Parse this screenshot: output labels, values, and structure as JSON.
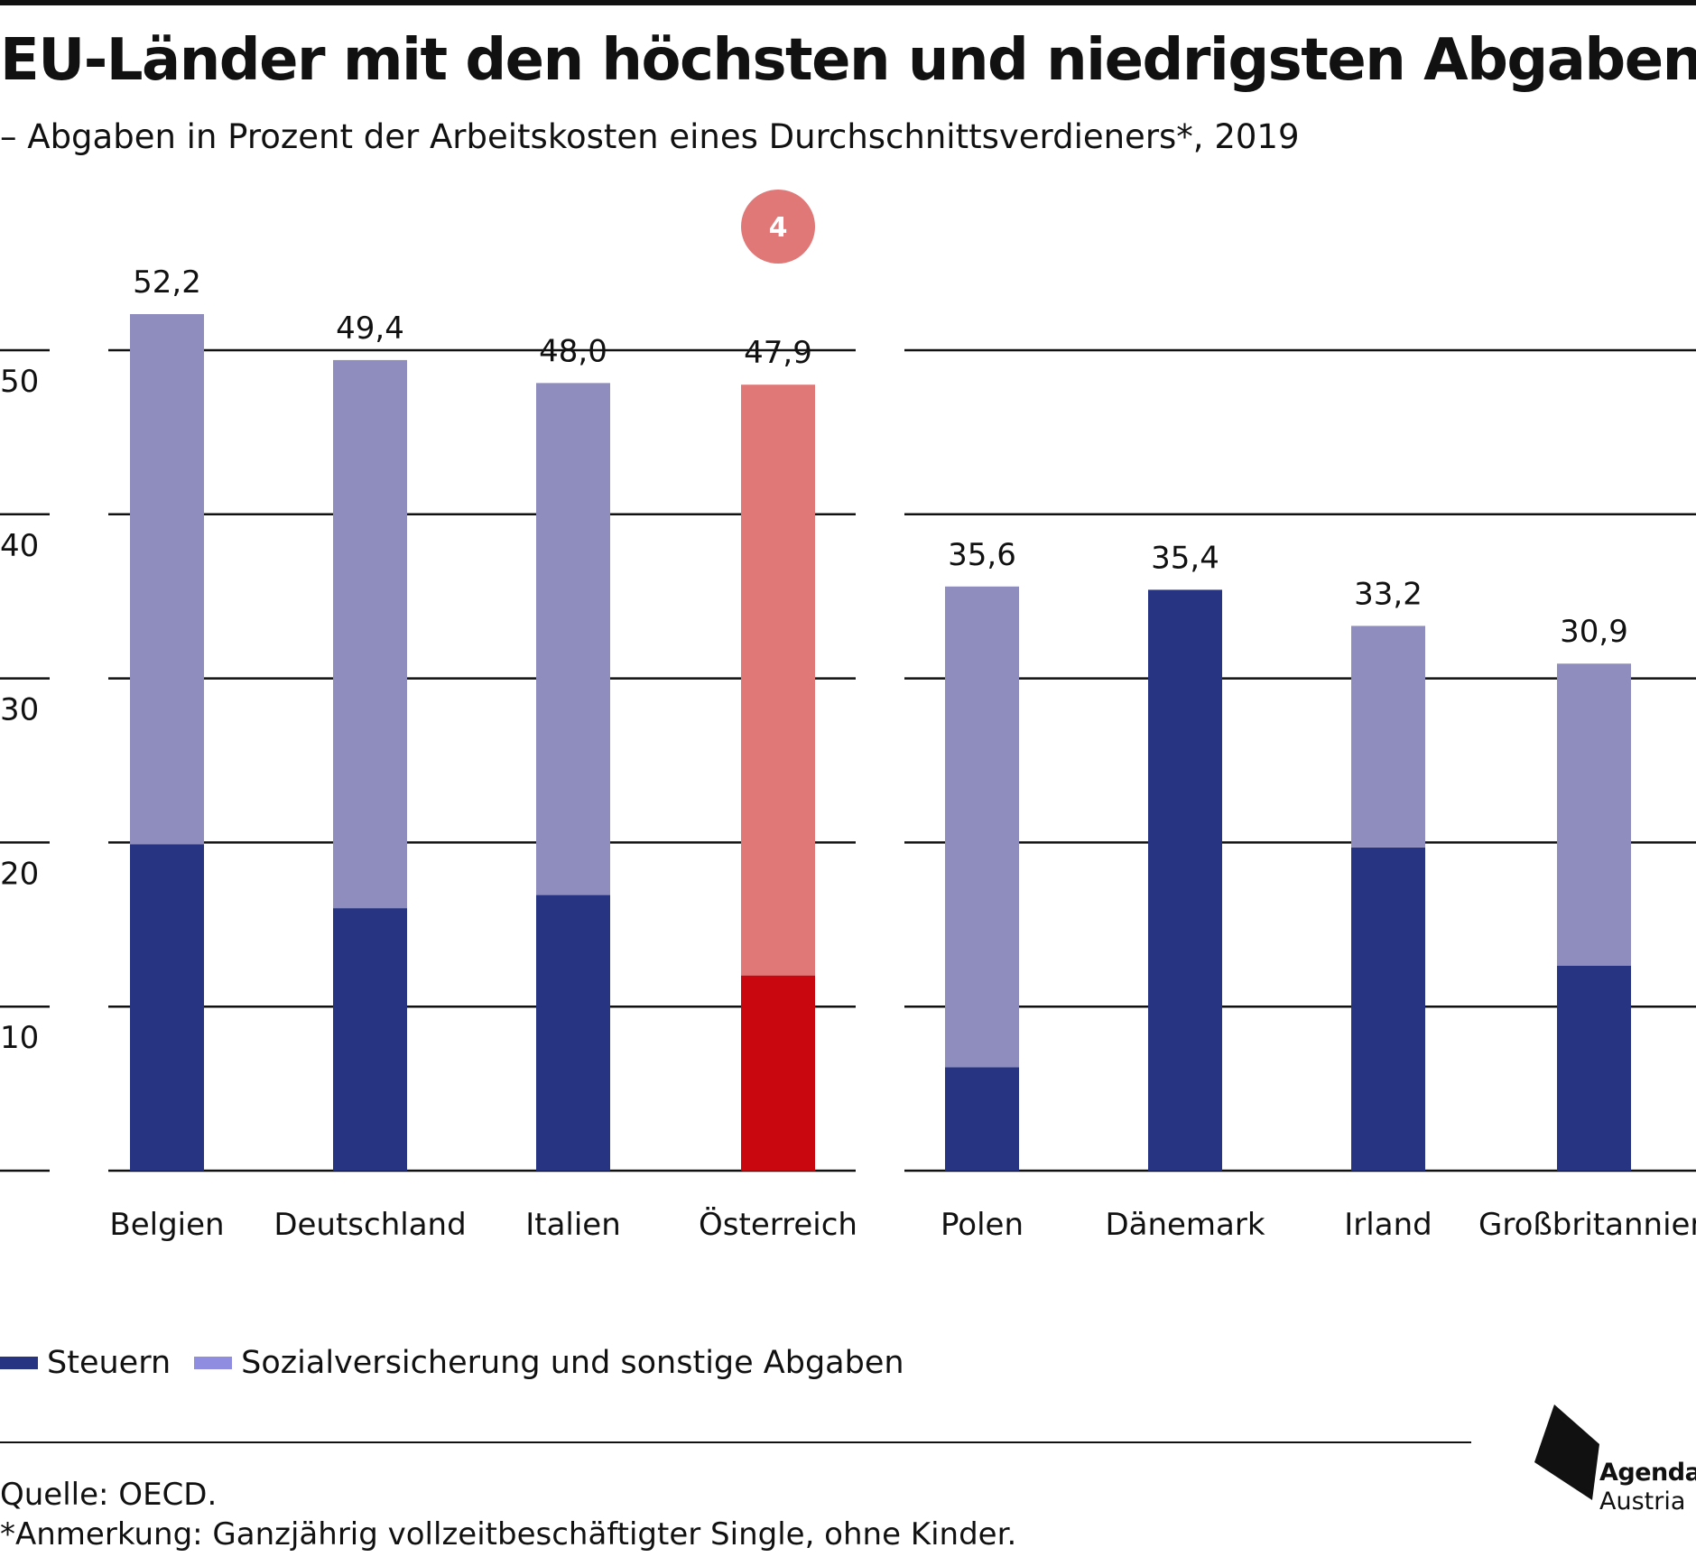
{
  "header": {
    "title": "EU-Länder mit den höchsten und niedrigsten Abgaben",
    "subtitle": "– Abgaben in Prozent der Arbeitskosten eines Durchschnittsverdieners*, 2019"
  },
  "chart_data": {
    "type": "bar",
    "stacked": true,
    "title": "EU-Länder mit den höchsten und niedrigsten Abgaben",
    "subtitle": "– Abgaben in Prozent der Arbeitskosten eines Durchschnittsverdieners*, 2019",
    "categories": [
      "Belgien",
      "Deutschland",
      "Italien",
      "Österreich",
      "Polen",
      "Dänemark",
      "Irland",
      "Großbritannien"
    ],
    "groups": [
      {
        "categories": [
          "Belgien",
          "Deutschland",
          "Italien",
          "Österreich"
        ]
      },
      {
        "categories": [
          "Polen",
          "Dänemark",
          "Irland",
          "Großbritannien"
        ]
      }
    ],
    "series": [
      {
        "name": "Steuern",
        "values": [
          19.9,
          16.0,
          16.8,
          11.9,
          6.3,
          35.4,
          19.7,
          12.5
        ]
      },
      {
        "name": "Sozialversicherung und sonstige Abgaben",
        "values": [
          32.3,
          33.4,
          31.2,
          36.0,
          29.3,
          0.0,
          13.5,
          18.4
        ]
      }
    ],
    "totals": [
      52.2,
      49.4,
      48.0,
      47.9,
      35.6,
      35.4,
      33.2,
      30.9
    ],
    "total_labels": [
      "52,2",
      "49,4",
      "48,0",
      "47,9",
      "35,6",
      "35,4",
      "33,2",
      "30,9"
    ],
    "ylim": [
      0,
      50
    ],
    "yticks": [
      10,
      20,
      30,
      40,
      50
    ],
    "grid": true,
    "legend_position": "bottom-left",
    "highlight": {
      "category": "Österreich",
      "rank_badge": "4"
    },
    "colors": {
      "steuern": "#263482",
      "sozial": "#8f8dbd",
      "highlight_steuern": "#c8070e",
      "highlight_sozial": "#e07878",
      "badge": "#e07878",
      "legend_sozial": "#8f8de0"
    }
  },
  "footer": {
    "source": "Quelle: OECD.",
    "note": "*Anmerkung: Ganzjährig vollzeitbeschäftigter Single, ohne Kinder."
  },
  "logo": {
    "line1": "Agenda",
    "line2": "Austria"
  }
}
